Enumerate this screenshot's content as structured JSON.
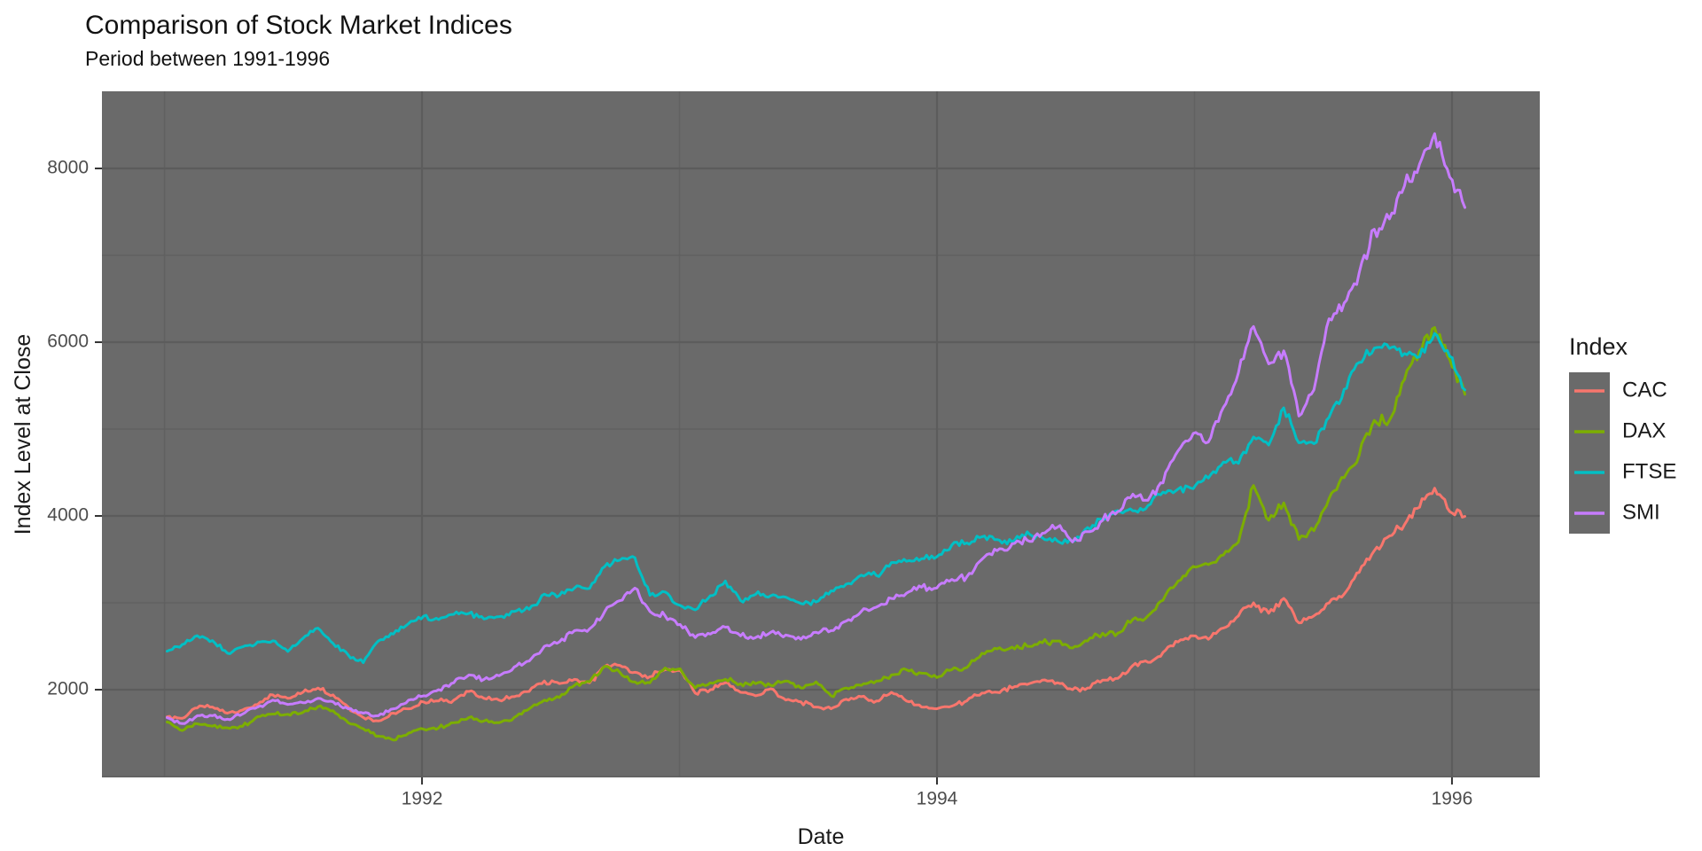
{
  "chart_data": {
    "type": "line",
    "title": "Comparison of Stock Market Indices",
    "subtitle": "Period between 1991-1996",
    "xlabel": "Date",
    "ylabel": "Index Level at Close",
    "legend_title": "Index",
    "legend_position": "right",
    "grid": true,
    "x_domain": [
      1990.757,
      1996.341
    ],
    "y_domain": [
      990,
      8888
    ],
    "x_ticks": [
      1992,
      1994,
      1996
    ],
    "x_minor_ticks": [
      1991,
      1993,
      1995
    ],
    "y_ticks": [
      2000,
      4000,
      6000,
      8000
    ],
    "y_minor_ticks": [
      1000,
      3000,
      5000,
      7000
    ],
    "sample_x_start": 1991.01,
    "sample_x_end": 1996.05,
    "theme": {
      "panel_bg": "#6A6A6A",
      "grid_major": "#5C5C5C",
      "grid_minor": "#616161",
      "tick_color": "#333333",
      "tick_label_color": "#4D4D4D",
      "text_color": "#1A1A1A"
    },
    "series": [
      {
        "name": "CAC",
        "color": "#F8766D",
        "jitter": 0.013,
        "values": [
          1688,
          1670,
          1790,
          1800,
          1730,
          1766,
          1830,
          1940,
          1900,
          1970,
          2020,
          1940,
          1800,
          1680,
          1640,
          1730,
          1780,
          1858,
          1870,
          1880,
          1980,
          1900,
          1880,
          1920,
          1980,
          2100,
          2070,
          2120,
          2080,
          2268,
          2280,
          2200,
          2150,
          2230,
          2220,
          1960,
          2000,
          2080,
          1970,
          1930,
          2010,
          1881,
          1860,
          1800,
          1780,
          1890,
          1920,
          1870,
          1970,
          1870,
          1800,
          1780,
          1810,
          1872,
          1960,
          1970,
          2020,
          2060,
          2110,
          2080,
          2000,
          2020,
          2110,
          2130,
          2280,
          2316,
          2430,
          2550,
          2620,
          2580,
          2710,
          2850,
          3000,
          2880,
          3050,
          2770,
          2850,
          2999,
          3100,
          3350,
          3600,
          3770,
          3900,
          4100,
          4320,
          4050,
          3995
        ]
      },
      {
        "name": "DAX",
        "color": "#7CAE00",
        "jitter": 0.012,
        "values": [
          1628,
          1530,
          1607,
          1580,
          1560,
          1578,
          1690,
          1720,
          1717,
          1738,
          1804,
          1757,
          1620,
          1550,
          1466,
          1420,
          1500,
          1545,
          1560,
          1620,
          1680,
          1640,
          1620,
          1680,
          1780,
          1880,
          1910,
          2050,
          2090,
          2270,
          2200,
          2090,
          2080,
          2250,
          2240,
          2020,
          2080,
          2120,
          2070,
          2070,
          2050,
          2100,
          2020,
          2090,
          1930,
          2020,
          2050,
          2100,
          2170,
          2230,
          2190,
          2140,
          2230,
          2254,
          2420,
          2470,
          2490,
          2500,
          2540,
          2560,
          2480,
          2560,
          2650,
          2650,
          2810,
          2850,
          3030,
          3250,
          3420,
          3440,
          3550,
          3700,
          4350,
          3950,
          4150,
          3730,
          3830,
          4200,
          4440,
          4700,
          5100,
          5100,
          5570,
          5900,
          6170,
          5800,
          5400
        ]
      },
      {
        "name": "FTSE",
        "color": "#00BFC4",
        "jitter": 0.01,
        "values": [
          2443,
          2520,
          2622,
          2566,
          2420,
          2493,
          2550,
          2562,
          2440,
          2590,
          2708,
          2533,
          2400,
          2310,
          2560,
          2640,
          2760,
          2847,
          2807,
          2868,
          2878,
          2813,
          2841,
          2900,
          2926,
          3100,
          3086,
          3171,
          3166,
          3418,
          3491,
          3520,
          3086,
          3125,
          2970,
          2919,
          3082,
          3251,
          3026,
          3097,
          3081,
          3066,
          2991,
          3009,
          3138,
          3216,
          3319,
          3315,
          3463,
          3478,
          3508,
          3529,
          3664,
          3689,
          3759,
          3728,
          3700,
          3818,
          3748,
          3711,
          3703,
          3868,
          3954,
          4061,
          4058,
          4119,
          4275,
          4309,
          4313,
          4436,
          4621,
          4605,
          4908,
          4817,
          5244,
          4842,
          4832,
          5136,
          5458,
          5767,
          5932,
          5928,
          5870,
          5833,
          6100,
          5837,
          5450
        ]
      },
      {
        "name": "SMI",
        "color": "#C77CFF",
        "jitter": 0.012,
        "values": [
          1678,
          1610,
          1700,
          1700,
          1660,
          1720,
          1800,
          1880,
          1830,
          1850,
          1900,
          1860,
          1780,
          1730,
          1700,
          1780,
          1880,
          1930,
          2000,
          2080,
          2170,
          2120,
          2160,
          2260,
          2330,
          2500,
          2550,
          2680,
          2700,
          2900,
          3025,
          3170,
          2900,
          2850,
          2750,
          2600,
          2640,
          2720,
          2620,
          2600,
          2660,
          2630,
          2580,
          2660,
          2680,
          2790,
          2900,
          2950,
          3050,
          3110,
          3180,
          3170,
          3270,
          3300,
          3500,
          3600,
          3680,
          3720,
          3800,
          3870,
          3700,
          3820,
          3950,
          4050,
          4250,
          4180,
          4380,
          4750,
          4950,
          4850,
          5250,
          5650,
          6180,
          5750,
          5900,
          5150,
          5450,
          6270,
          6450,
          6800,
          7300,
          7420,
          7800,
          8050,
          8400,
          7900,
          7550
        ]
      }
    ]
  }
}
